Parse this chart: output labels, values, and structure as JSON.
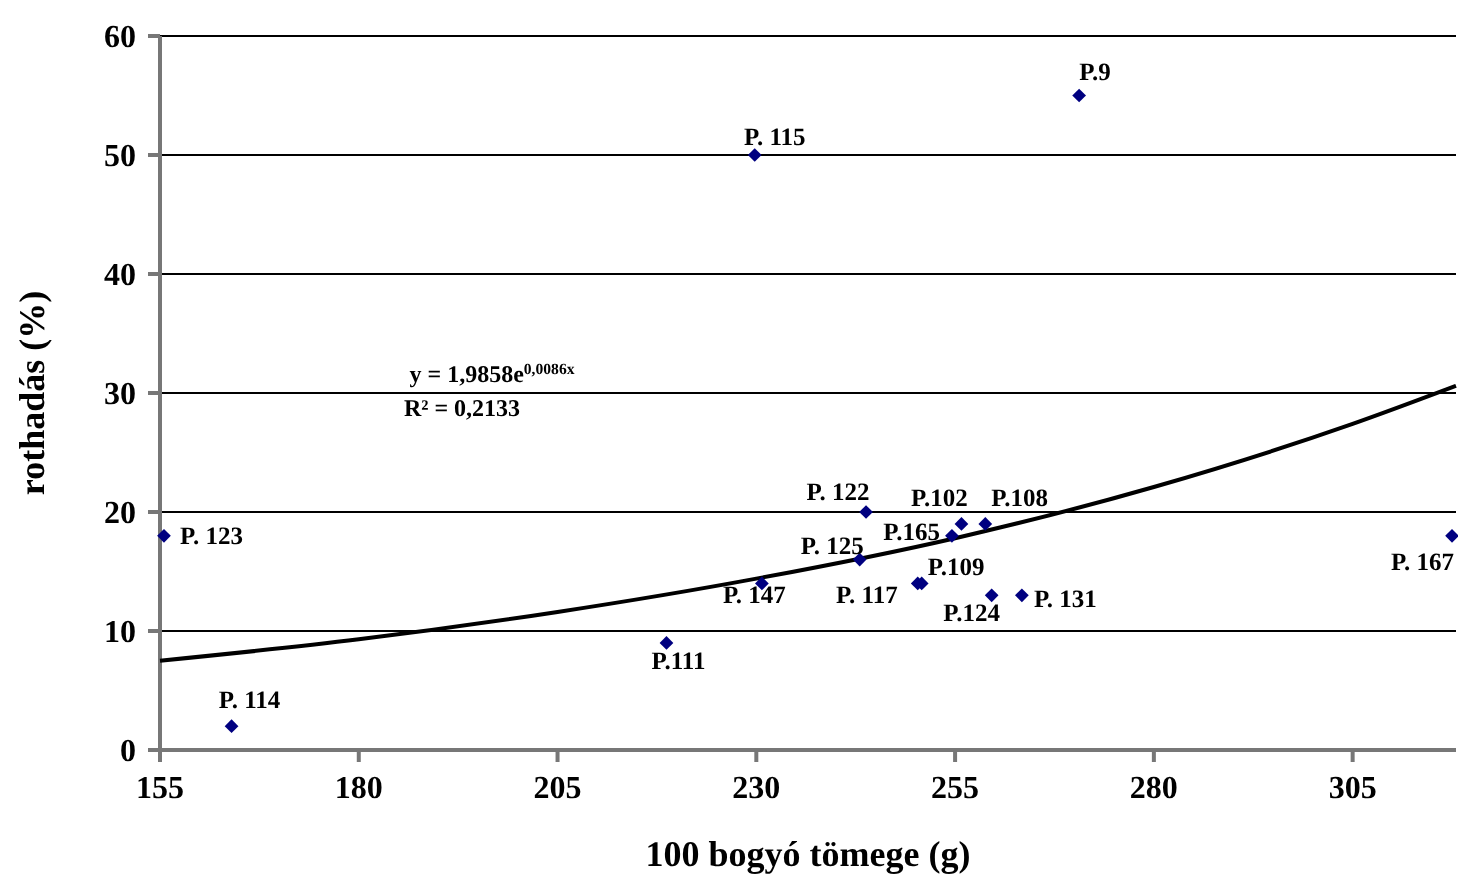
{
  "chart_data": {
    "type": "scatter",
    "xlabel": "100 bogyó tömege (g)",
    "ylabel": "rothadás (%)",
    "xlim": [
      155,
      318
    ],
    "xticks": [
      155,
      180,
      205,
      230,
      255,
      280,
      305
    ],
    "ylim": [
      0,
      60
    ],
    "yticks": [
      0,
      10,
      20,
      30,
      40,
      50,
      60
    ],
    "grid": "y",
    "marker": "diamond",
    "series": [
      {
        "color": "#000080",
        "x": [
          270.6,
          229.8,
          155.5,
          164,
          218.7,
          230.7,
          243,
          243.8,
          250.3,
          250.8,
          254.6,
          255.8,
          258.8,
          259.6,
          263.4,
          317.5
        ],
        "values": [
          55,
          50,
          18,
          2,
          9,
          14,
          16,
          20,
          14,
          14,
          18,
          19,
          19,
          13,
          13,
          18
        ]
      },
      {
        "type": "line",
        "color": "#000000",
        "marker": "none",
        "x": [
          155,
          180,
          205,
          230,
          255,
          280,
          305,
          318
        ],
        "values": [
          7.5,
          9.3,
          11.6,
          14.4,
          17.8,
          22.1,
          27.4,
          30.6
        ]
      }
    ],
    "annotations": [
      {
        "text": "P.9",
        "x": 270.6,
        "y": 55
      },
      {
        "text": "P. 115",
        "x": 229.8,
        "y": 50
      },
      {
        "text": "P. 123",
        "x": 155.5,
        "y": 18
      },
      {
        "text": "P. 114",
        "x": 164,
        "y": 2
      },
      {
        "text": "P.111",
        "x": 218.7,
        "y": 9
      },
      {
        "text": "P. 147",
        "x": 230.7,
        "y": 14
      },
      {
        "text": "P. 125",
        "x": 243,
        "y": 16
      },
      {
        "text": "P. 122",
        "x": 243.8,
        "y": 20
      },
      {
        "text": "P. 117",
        "x": 250.3,
        "y": 14
      },
      {
        "text": "P.109",
        "x": 250.8,
        "y": 14
      },
      {
        "text": "P.165",
        "x": 254.6,
        "y": 18
      },
      {
        "text": "P.102",
        "x": 255.8,
        "y": 19
      },
      {
        "text": "P.108",
        "x": 258.8,
        "y": 19
      },
      {
        "text": "P.124",
        "x": 259.6,
        "y": 13
      },
      {
        "text": "P. 131",
        "x": 263.4,
        "y": 13
      },
      {
        "text": "P. 167",
        "x": 317.5,
        "y": 18
      },
      "y = 1,9858e$^{0,0086x}$",
      "R² = 0,2133"
    ]
  }
}
